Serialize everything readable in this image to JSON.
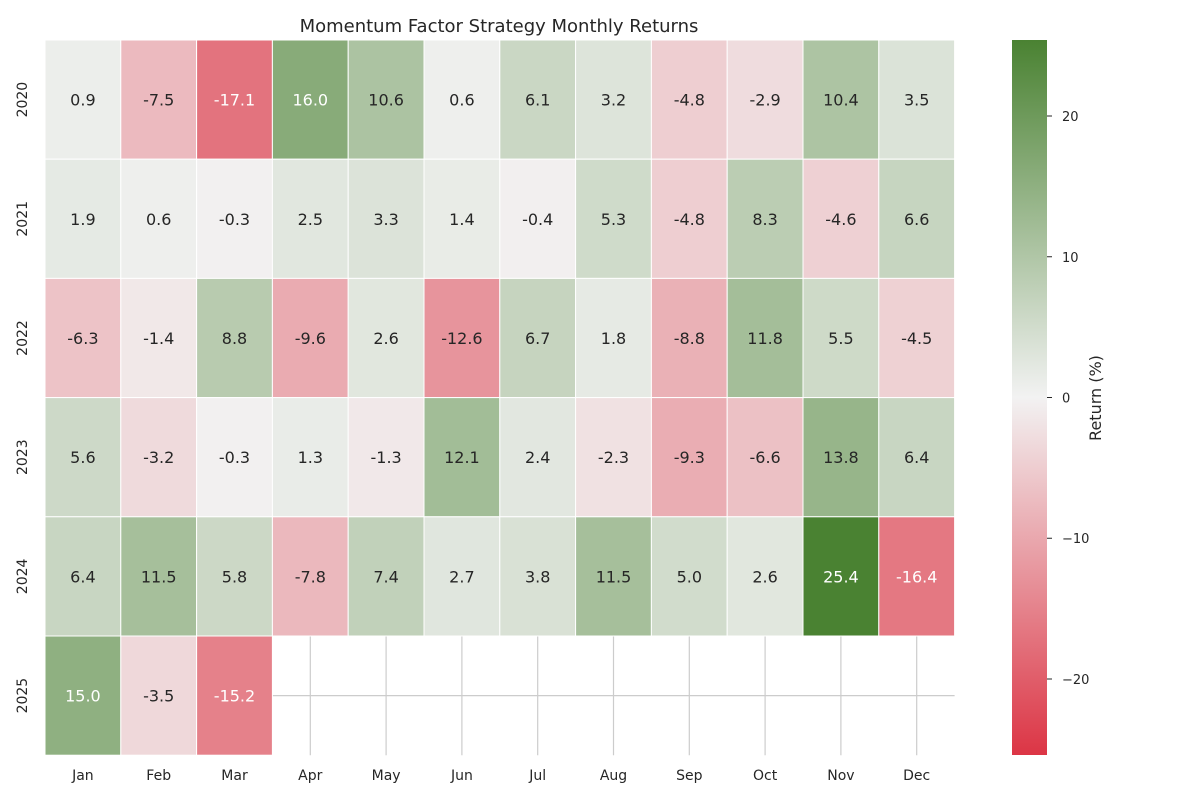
{
  "chart_data": {
    "type": "heatmap",
    "title": "Momentum Factor Strategy Monthly Returns",
    "x_categories": [
      "Jan",
      "Feb",
      "Mar",
      "Apr",
      "May",
      "Jun",
      "Jul",
      "Aug",
      "Sep",
      "Oct",
      "Nov",
      "Dec"
    ],
    "y_categories": [
      "2020",
      "2021",
      "2022",
      "2023",
      "2024",
      "2025"
    ],
    "values": [
      [
        0.9,
        -7.5,
        -17.1,
        16.0,
        10.6,
        0.6,
        6.1,
        3.2,
        -4.8,
        -2.9,
        10.4,
        3.5
      ],
      [
        1.9,
        0.6,
        -0.3,
        2.5,
        3.3,
        1.4,
        -0.4,
        5.3,
        -4.8,
        8.3,
        -4.6,
        6.6
      ],
      [
        -6.3,
        -1.4,
        8.8,
        -9.6,
        2.6,
        -12.6,
        6.7,
        1.8,
        -8.8,
        11.8,
        5.5,
        -4.5
      ],
      [
        5.6,
        -3.2,
        -0.3,
        1.3,
        -1.3,
        12.1,
        2.4,
        -2.3,
        -9.3,
        -6.6,
        13.8,
        6.4
      ],
      [
        6.4,
        11.5,
        5.8,
        -7.8,
        7.4,
        2.7,
        3.8,
        11.5,
        5.0,
        2.6,
        25.4,
        -16.4
      ],
      [
        15.0,
        -3.5,
        -15.2,
        null,
        null,
        null,
        null,
        null,
        null,
        null,
        null,
        null
      ]
    ],
    "colorbar": {
      "label": "Return (%)",
      "range": [
        -25.4,
        25.4
      ],
      "ticks": [
        -20,
        -10,
        0,
        10,
        20
      ],
      "tick_labels": [
        "−20",
        "−10",
        "0",
        "10",
        "20"
      ]
    },
    "colors": {
      "negative": "#dc3545",
      "center": "#f2f2f2",
      "positive": "#4a8232",
      "grid": "#cccccc"
    }
  }
}
